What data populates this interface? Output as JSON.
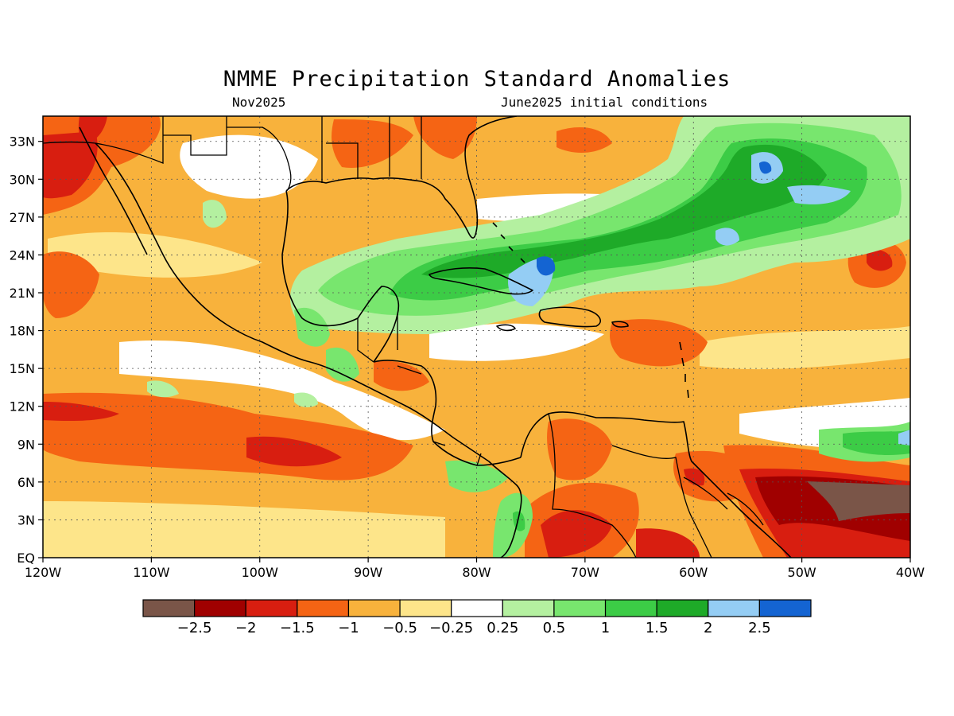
{
  "title": "NMME Precipitation Standard Anomalies",
  "subtitle_left": "Nov2025",
  "subtitle_right": "June2025 initial conditions",
  "map": {
    "lon_range": [
      -120,
      -40
    ],
    "lat_range": [
      0,
      35
    ],
    "lon_labels": [
      "120W",
      "110W",
      "100W",
      "90W",
      "80W",
      "70W",
      "60W",
      "50W",
      "40W"
    ],
    "lat_labels": [
      "EQ",
      "3N",
      "6N",
      "9N",
      "12N",
      "15N",
      "18N",
      "21N",
      "24N",
      "27N",
      "30N",
      "33N"
    ],
    "grid": "dotted"
  },
  "colorbar": {
    "colors": [
      "#7a5548",
      "#a00000",
      "#d81e10",
      "#f56414",
      "#f8b23c",
      "#fde58a",
      "#ffffff",
      "#b4f0a0",
      "#78e66e",
      "#3ccc46",
      "#1eaa28",
      "#94cdf4",
      "#1464d2"
    ],
    "labels": [
      "-2.5",
      "-2",
      "-1.5",
      "-1",
      "-0.5",
      "-0.25",
      "0.25",
      "0.5",
      "1",
      "1.5",
      "2",
      "2.5"
    ]
  }
}
